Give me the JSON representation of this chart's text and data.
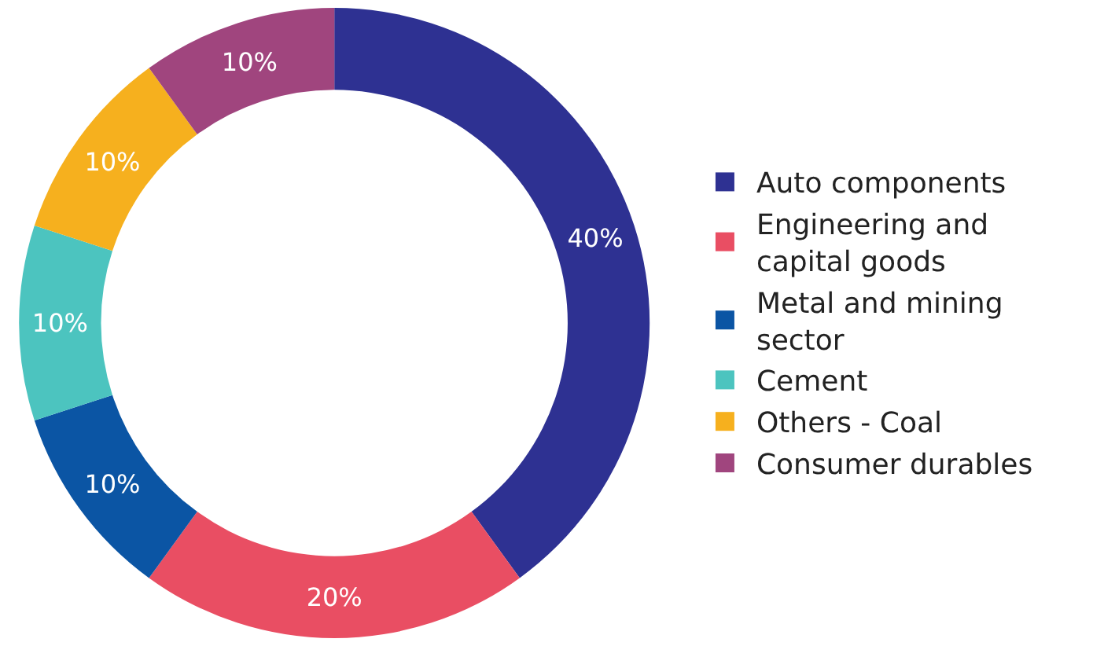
{
  "chart_data": {
    "type": "donut",
    "categories": [
      "Auto components",
      "Engineering and capital goods",
      "Metal and mining sector",
      "Cement",
      "Others - Coal",
      "Consumer durables"
    ],
    "values": [
      40,
      20,
      10,
      10,
      10,
      10
    ],
    "value_labels": [
      "40%",
      "20%",
      "10%",
      "10%",
      "10%",
      "10%"
    ],
    "colors": [
      "#2e3192",
      "#e94e63",
      "#0b55a4",
      "#4cc4bf",
      "#f6b01e",
      "#a0457e"
    ],
    "legend": "right"
  }
}
